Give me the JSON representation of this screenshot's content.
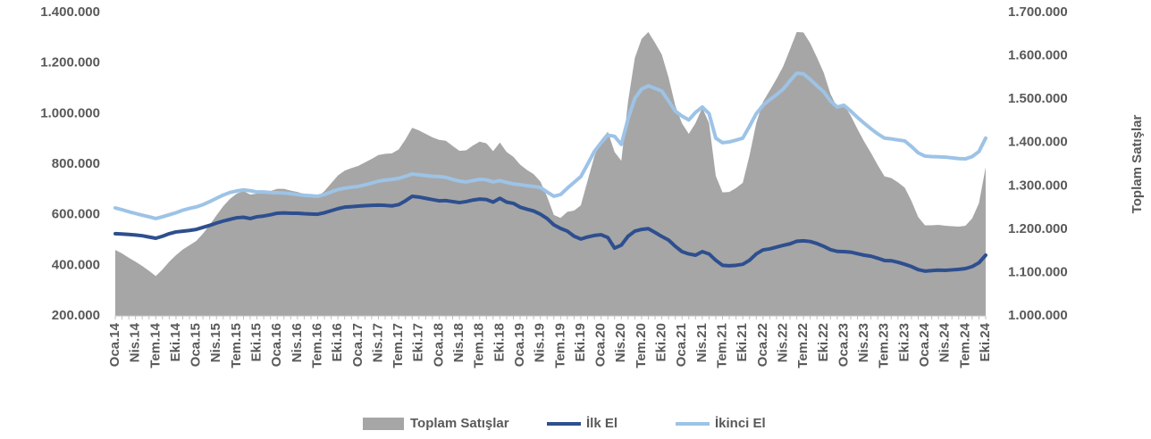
{
  "chart_data": {
    "type": "area-line",
    "y2label": "Toplam Satışlar",
    "categories": [
      "Oca.14",
      null,
      null,
      "Nis.14",
      null,
      null,
      "Tem.14",
      null,
      null,
      "Eki.14",
      null,
      null,
      "Oca.15",
      null,
      null,
      "Nis.15",
      null,
      null,
      "Tem.15",
      null,
      null,
      "Eki.15",
      null,
      null,
      "Oca.16",
      null,
      null,
      "Nis.16",
      null,
      null,
      "Tem.16",
      null,
      null,
      "Eki.16",
      null,
      null,
      "Oca.17",
      null,
      null,
      "Nis.17",
      null,
      null,
      "Tem.17",
      null,
      null,
      "Eki.17",
      null,
      null,
      "Oca.18",
      null,
      null,
      "Nis.18",
      null,
      null,
      "Tem.18",
      null,
      null,
      "Eki.18",
      null,
      null,
      "Oca.19",
      null,
      null,
      "Nis.19",
      null,
      null,
      "Tem.19",
      null,
      null,
      "Eki.19",
      null,
      null,
      "Oca.20",
      null,
      null,
      "Nis.20",
      null,
      null,
      "Tem.20",
      null,
      null,
      "Eki.20",
      null,
      null,
      "Oca.21",
      null,
      null,
      "Nis.21",
      null,
      null,
      "Tem.21",
      null,
      null,
      "Eki.21",
      null,
      null,
      "Oca.22",
      null,
      null,
      "Nis.22",
      null,
      null,
      "Tem.22",
      null,
      null,
      "Eki.22",
      null,
      null,
      "Oca.23",
      null,
      null,
      "Nis.23",
      null,
      null,
      "Tem.23",
      null,
      null,
      "Eki.23",
      null,
      null,
      "Oca.24",
      null,
      null,
      "Nis.24",
      null,
      null,
      "Tem.24",
      null,
      null,
      "Eki.24"
    ],
    "series": [
      {
        "name": "Toplam Satışlar",
        "color": "#a6a6a6",
        "kind": "area",
        "axis": "y2",
        "values": [
          1152000,
          1144000,
          1134000,
          1125000,
          1115000,
          1104000,
          1092000,
          1107000,
          1125000,
          1140000,
          1153000,
          1163000,
          1173000,
          1190000,
          1210000,
          1232000,
          1253000,
          1270000,
          1282000,
          1288000,
          1280000,
          1282000,
          1285000,
          1288000,
          1293000,
          1293000,
          1289000,
          1286000,
          1281000,
          1278000,
          1275000,
          1288000,
          1306000,
          1324000,
          1335000,
          1341000,
          1346000,
          1354000,
          1362000,
          1371000,
          1374000,
          1375000,
          1384000,
          1407000,
          1434000,
          1428000,
          1420000,
          1412000,
          1406000,
          1404000,
          1392000,
          1381000,
          1382000,
          1393000,
          1402000,
          1398000,
          1380000,
          1400000,
          1378000,
          1367000,
          1349000,
          1337000,
          1327000,
          1310000,
          1275000,
          1233000,
          1226000,
          1240000,
          1243000,
          1255000,
          1312000,
          1368000,
          1406000,
          1425000,
          1378000,
          1358000,
          1495000,
          1595000,
          1639000,
          1655000,
          1630000,
          1603000,
          1550000,
          1485000,
          1444000,
          1420000,
          1445000,
          1480000,
          1445000,
          1323000,
          1285000,
          1286000,
          1295000,
          1307000,
          1370000,
          1445000,
          1494000,
          1520000,
          1547000,
          1576000,
          1615000,
          1655000,
          1654000,
          1629000,
          1596000,
          1561000,
          1512000,
          1481000,
          1487000,
          1462000,
          1431000,
          1402000,
          1376000,
          1348000,
          1322000,
          1318000,
          1308000,
          1296000,
          1265000,
          1228000,
          1209000,
          1209000,
          1210000,
          1208000,
          1207000,
          1206000,
          1208000,
          1225000,
          1260000,
          1343000
        ]
      },
      {
        "name": "İlk El",
        "color": "#2e4f8f",
        "kind": "line",
        "axis": "y",
        "values": [
          525000,
          524000,
          522000,
          520000,
          517000,
          512000,
          507000,
          515000,
          525000,
          532000,
          535000,
          538000,
          542000,
          550000,
          558000,
          567000,
          575000,
          582000,
          588000,
          590000,
          585000,
          592000,
          595000,
          600000,
          606000,
          607000,
          606000,
          606000,
          604000,
          603000,
          602000,
          608000,
          616000,
          624000,
          630000,
          632000,
          634000,
          636000,
          637000,
          638000,
          637000,
          635000,
          640000,
          655000,
          673000,
          670000,
          665000,
          660000,
          655000,
          656000,
          652000,
          648000,
          652000,
          658000,
          662000,
          660000,
          650000,
          665000,
          650000,
          645000,
          630000,
          622000,
          615000,
          602000,
          585000,
          560000,
          546000,
          535000,
          515000,
          504000,
          512000,
          518000,
          521000,
          510000,
          468000,
          480000,
          515000,
          535000,
          542000,
          545000,
          530000,
          514000,
          500000,
          475000,
          454000,
          445000,
          440000,
          454000,
          445000,
          420000,
          400000,
          398000,
          400000,
          404000,
          420000,
          445000,
          461000,
          465000,
          472000,
          479000,
          485000,
          495000,
          497000,
          494000,
          486000,
          475000,
          462000,
          455000,
          454000,
          452000,
          446000,
          440000,
          436000,
          428000,
          419000,
          418000,
          412000,
          404000,
          395000,
          383000,
          377000,
          379000,
          381000,
          380000,
          382000,
          384000,
          387000,
          395000,
          410000,
          440000
        ]
      },
      {
        "name": "İkinci El",
        "color": "#9dc3e6",
        "kind": "line",
        "axis": "y",
        "values": [
          627000,
          620000,
          612000,
          605000,
          598000,
          592000,
          585000,
          592000,
          600000,
          608000,
          618000,
          625000,
          631000,
          640000,
          652000,
          665000,
          678000,
          688000,
          694000,
          698000,
          695000,
          690000,
          690000,
          688000,
          687000,
          686000,
          683000,
          680000,
          677000,
          675000,
          673000,
          680000,
          690000,
          700000,
          705000,
          709000,
          712000,
          718000,
          725000,
          733000,
          737000,
          740000,
          744000,
          752000,
          761000,
          758000,
          755000,
          752000,
          751000,
          748000,
          740000,
          733000,
          730000,
          735000,
          740000,
          738000,
          730000,
          735000,
          728000,
          722000,
          719000,
          715000,
          712000,
          708000,
          690000,
          673000,
          680000,
          705000,
          728000,
          751000,
          800000,
          850000,
          885000,
          915000,
          910000,
          878000,
          980000,
          1060000,
          1097000,
          1110000,
          1100000,
          1089000,
          1050000,
          1010000,
          990000,
          975000,
          1005000,
          1026000,
          1000000,
          903000,
          885000,
          888000,
          895000,
          903000,
          950000,
          1000000,
          1033000,
          1055000,
          1075000,
          1097000,
          1130000,
          1160000,
          1157000,
          1135000,
          1110000,
          1086000,
          1050000,
          1026000,
          1033000,
          1010000,
          985000,
          962000,
          940000,
          920000,
          903000,
          900000,
          896000,
          892000,
          870000,
          845000,
          832000,
          830000,
          829000,
          828000,
          825000,
          822000,
          821000,
          830000,
          850000,
          903000
        ]
      }
    ],
    "ylim": [
      200000,
      1400000
    ],
    "yticks": [
      {
        "value": 200000,
        "label": "200.000"
      },
      {
        "value": 400000,
        "label": "400.000"
      },
      {
        "value": 600000,
        "label": "600.000"
      },
      {
        "value": 800000,
        "label": "800.000"
      },
      {
        "value": 1000000,
        "label": "1.000.000"
      },
      {
        "value": 1200000,
        "label": "1.200.000"
      },
      {
        "value": 1400000,
        "label": "1.400.000"
      }
    ],
    "y2lim": [
      1000000,
      1700000
    ],
    "y2ticks": [
      {
        "value": 1000000,
        "label": "1.000.000"
      },
      {
        "value": 1100000,
        "label": "1.100.000"
      },
      {
        "value": 1200000,
        "label": "1.200.000"
      },
      {
        "value": 1300000,
        "label": "1.300.000"
      },
      {
        "value": 1400000,
        "label": "1.400.000"
      },
      {
        "value": 1500000,
        "label": "1.500.000"
      },
      {
        "value": 1600000,
        "label": "1.600.000"
      },
      {
        "value": 1700000,
        "label": "1.700.000"
      }
    ],
    "grid": false,
    "legend": "bottom"
  }
}
